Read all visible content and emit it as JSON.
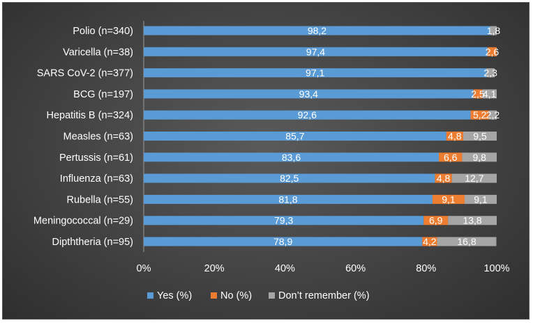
{
  "chart_data": {
    "type": "bar",
    "orientation": "horizontal",
    "stacked": "100%",
    "categories": [
      "Polio (n=340)",
      "Varicella (n=38)",
      "SARS CoV-2 (n=377)",
      "BCG (n=197)",
      "Hepatitis B (n=324)",
      "Measles (n=63)",
      "Pertussis (n=61)",
      "Influenza (n=63)",
      "Rubella (n=55)",
      "Meningococcal (n=29)",
      "Dipththeria (n=95)"
    ],
    "series": [
      {
        "name": "Yes (%)",
        "color": "#5b9bd5",
        "values": [
          98.2,
          97.4,
          97.1,
          93.4,
          92.6,
          85.7,
          83.6,
          82.5,
          81.8,
          79.3,
          78.9
        ],
        "labels": [
          "98,2",
          "97,4",
          "97,1",
          "93,4",
          "92,6",
          "85,7",
          "83,6",
          "82,5",
          "81,8",
          "79,3",
          "78,9"
        ]
      },
      {
        "name": "No (%)",
        "color": "#ed7d31",
        "values": [
          0,
          2.6,
          0,
          2.5,
          5.2,
          4.8,
          6.6,
          4.8,
          9.1,
          6.9,
          4.2
        ],
        "labels": [
          "0",
          "2,6",
          "0",
          "2,5",
          "5,2",
          "4,8",
          "6,6",
          "4,8",
          "9,1",
          "6,9",
          "4,2"
        ]
      },
      {
        "name": "Don’t remember (%)",
        "color": "#a5a5a5",
        "values": [
          1.8,
          0,
          2.3,
          4.1,
          2.2,
          9.5,
          9.8,
          12.7,
          9.1,
          13.8,
          16.8
        ],
        "labels": [
          "1,8",
          "0",
          "2,3",
          "4,1",
          "2,2",
          "9,5",
          "9,8",
          "12,7",
          "9,1",
          "13,8",
          "16,8"
        ]
      }
    ],
    "xaxis": {
      "ticks": [
        0,
        20,
        40,
        60,
        80,
        100
      ],
      "tick_labels": [
        "0%",
        "20%",
        "40%",
        "60%",
        "80%",
        "100%"
      ],
      "range": [
        0,
        100
      ]
    },
    "grid": false,
    "legend_position": "bottom"
  }
}
